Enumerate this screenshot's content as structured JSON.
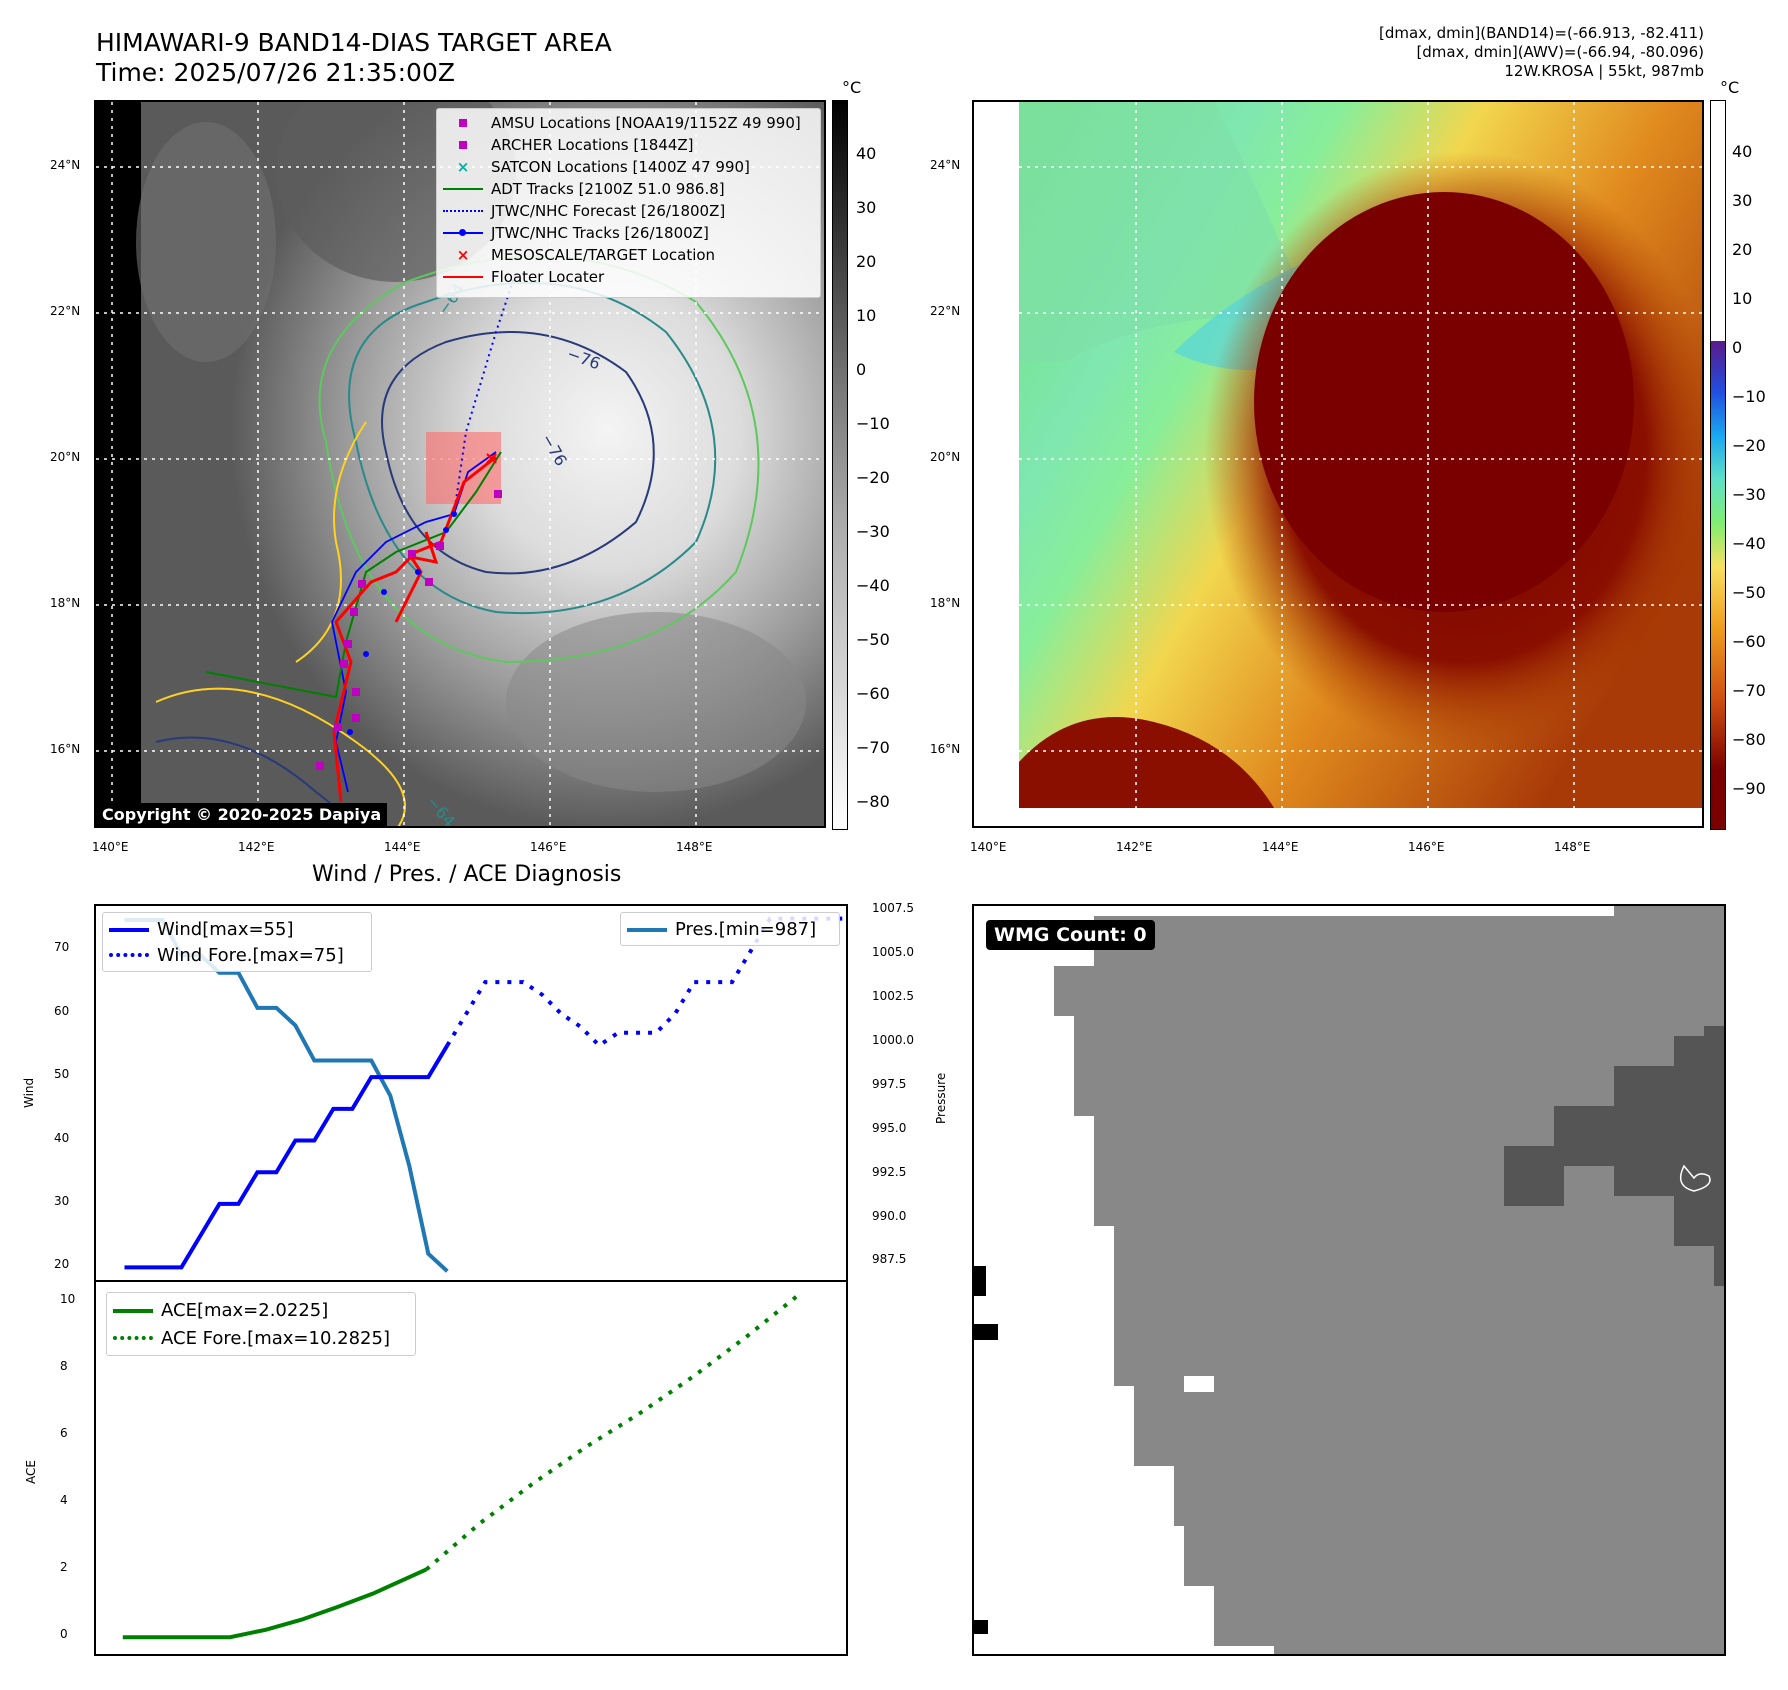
{
  "header": {
    "title_line1": "HIMAWARI-9 BAND14-DIAS TARGET AREA",
    "title_line2": "Time: 2025/07/26 21:35:00Z",
    "info_line1": "[dmax, dmin](BAND14)=(-66.913, -82.411)",
    "info_line2": "[dmax, dmin](AWV)=(-66.94, -80.096)",
    "info_line3": "12W.KROSA | 55kt, 987mb"
  },
  "map_left": {
    "lat_ticks": [
      "24°N",
      "22°N",
      "20°N",
      "18°N",
      "16°N"
    ],
    "lon_ticks": [
      "140°E",
      "142°E",
      "144°E",
      "146°E",
      "148°E"
    ],
    "colorbar_unit": "°C",
    "colorbar_ticks": [
      "40",
      "30",
      "20",
      "10",
      "0",
      "−10",
      "−20",
      "−30",
      "−40",
      "−50",
      "−60",
      "−70",
      "−80"
    ],
    "contour_labels": [
      "−64",
      "−76",
      "−76",
      "−64"
    ],
    "copyright": "Copyright © 2020-2025 Dapiya",
    "legend": [
      {
        "label": "AMSU Locations [NOAA19/1152Z 49 990]",
        "color": "#c000c0",
        "symbol": "square"
      },
      {
        "label": "ARCHER Locations [1844Z]",
        "color": "#c000c0",
        "symbol": "square"
      },
      {
        "label": "SATCON Locations [1400Z 47 990]",
        "color": "#00b0a0",
        "symbol": "x"
      },
      {
        "label": "ADT Tracks [2100Z 51.0 986.8]",
        "color": "#008000",
        "symbol": "line"
      },
      {
        "label": "JTWC/NHC Forecast [26/1800Z]",
        "color": "#0000ff",
        "symbol": "dotted"
      },
      {
        "label": "JTWC/NHC Tracks [26/1800Z]",
        "color": "#0000ff",
        "symbol": "line-dot"
      },
      {
        "label": "MESOSCALE/TARGET Location",
        "color": "#ff0000",
        "symbol": "x"
      },
      {
        "label": "Floater Locater",
        "color": "#ff0000",
        "symbol": "line"
      }
    ]
  },
  "map_right": {
    "lat_ticks": [
      "24°N",
      "22°N",
      "20°N",
      "18°N",
      "16°N"
    ],
    "lon_ticks": [
      "140°E",
      "142°E",
      "144°E",
      "146°E",
      "148°E"
    ],
    "colorbar_unit": "°C",
    "colorbar_ticks": [
      "40",
      "30",
      "20",
      "10",
      "0",
      "−10",
      "−20",
      "−30",
      "−40",
      "−50",
      "−60",
      "−70",
      "−80",
      "−90"
    ]
  },
  "diag": {
    "title": "Wind / Pres. / ACE Diagnosis",
    "wind_ylabel": "Wind",
    "pres_ylabel": "Pressure",
    "ace_ylabel": "ACE",
    "wind_ticks": [
      "70",
      "60",
      "50",
      "40",
      "30",
      "20"
    ],
    "pres_ticks": [
      "1007.5",
      "1005.0",
      "1002.5",
      "1000.0",
      "997.5",
      "995.0",
      "992.5",
      "990.0",
      "987.5"
    ],
    "ace_ticks": [
      "10",
      "8",
      "6",
      "4",
      "2",
      "0"
    ],
    "legend_wind": "Wind[max=55]",
    "legend_wind_fore": "Wind Fore.[max=75]",
    "legend_pres": "Pres.[min=987]",
    "legend_ace": "ACE[max=2.0225]",
    "legend_ace_fore": "ACE Fore.[max=10.2825]"
  },
  "wmg": {
    "label": "WMG Count: 0"
  },
  "colors": {
    "wind": "#0000ff",
    "pres": "#1f77b4",
    "ace": "#008000"
  },
  "chart_data": [
    {
      "type": "line",
      "title": "Wind / Pres. / ACE Diagnosis",
      "ylabel": "Wind",
      "ylim": [
        18,
        77
      ],
      "series": [
        {
          "name": "Wind[max=55]",
          "x": [
            0,
            1,
            2,
            3,
            4,
            5,
            6,
            7,
            8,
            9,
            10,
            11,
            12,
            13,
            14,
            15,
            16,
            17
          ],
          "values": [
            20,
            20,
            20,
            20,
            25,
            30,
            30,
            35,
            35,
            40,
            40,
            45,
            45,
            50,
            50,
            50,
            50,
            55
          ]
        },
        {
          "name": "Wind Fore.[max=75]",
          "x": [
            17,
            18,
            19,
            20,
            21,
            22,
            23,
            24,
            25,
            26,
            27,
            28,
            29,
            30,
            31,
            32,
            33,
            34,
            35,
            36,
            37,
            38
          ],
          "values": [
            55,
            60,
            65,
            65,
            65,
            63,
            60,
            58,
            55,
            57,
            57,
            57,
            60,
            65,
            65,
            65,
            70,
            75,
            75,
            75,
            75,
            75
          ]
        }
      ]
    },
    {
      "type": "line",
      "ylabel": "Pressure",
      "ylim": [
        986.5,
        1007.8
      ],
      "series": [
        {
          "name": "Pres.[min=987]",
          "x": [
            0,
            1,
            2,
            3,
            4,
            5,
            6,
            7,
            8,
            9,
            10,
            11,
            12,
            13,
            14,
            15,
            16,
            17
          ],
          "values": [
            1007,
            1007,
            1007,
            1005,
            1005,
            1004,
            1004,
            1002,
            1002,
            1001,
            999,
            999,
            999,
            999,
            997,
            993,
            988,
            987
          ]
        }
      ]
    },
    {
      "type": "line",
      "ylabel": "ACE",
      "ylim": [
        -0.5,
        10.6
      ],
      "series": [
        {
          "name": "ACE[max=2.0225]",
          "x": [
            0,
            3,
            6,
            8,
            10,
            12,
            14,
            17
          ],
          "values": [
            0,
            0,
            0,
            0.2225,
            0.5225,
            0.9,
            1.3,
            2.0225
          ]
        },
        {
          "name": "ACE Fore.[max=10.2825]",
          "x": [
            17,
            20,
            23,
            26,
            29,
            32,
            35,
            38
          ],
          "values": [
            2.0225,
            3.4,
            4.6,
            5.7,
            6.7,
            7.8,
            9.0,
            10.2825
          ]
        }
      ]
    }
  ]
}
